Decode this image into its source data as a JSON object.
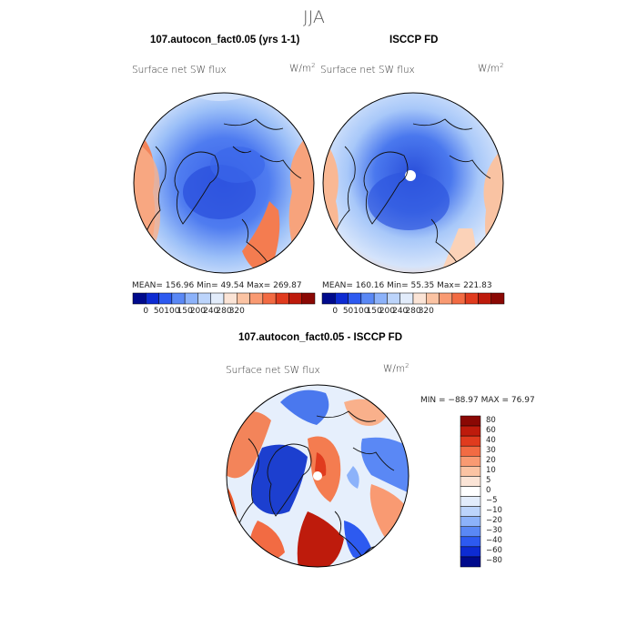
{
  "title": "JJA",
  "panels": [
    {
      "case_title": "107.autocon_fact0.05 (yrs 1-1)",
      "variable": "Surface net SW flux",
      "units_base": "W/m",
      "units_exp": "2",
      "stats": "MEAN= 156.96   Min=  49.54   Max= 269.87"
    },
    {
      "case_title": "ISCCP FD",
      "variable": "Surface net SW flux",
      "units_base": "W/m",
      "units_exp": "2",
      "stats": "MEAN= 160.16   Min=  55.35   Max= 221.83"
    }
  ],
  "diff_panel": {
    "title": "107.autocon_fact0.05 - ISCCP FD",
    "variable": "Surface net SW flux",
    "units_base": "W/m",
    "units_exp": "2",
    "stats": "MIN = −88.97 MAX =  76.97"
  },
  "colorbar_abs": {
    "ticks": [
      "0",
      "50",
      "100",
      "150",
      "200",
      "240",
      "280",
      "320"
    ],
    "colors": [
      "#000a8c",
      "#0d2bd2",
      "#2d5af0",
      "#5a88f5",
      "#8cb2fa",
      "#bcd4fb",
      "#e2ecfb",
      "#fbe4d6",
      "#fbc3a3",
      "#f99a72",
      "#f26b43",
      "#e03b1e",
      "#be1b0c",
      "#8a0804"
    ]
  },
  "colorbar_diff": {
    "ticks": [
      "80",
      "60",
      "40",
      "30",
      "20",
      "10",
      "5",
      "0",
      "−5",
      "−10",
      "−20",
      "−30",
      "−40",
      "−60",
      "−80"
    ],
    "colors": [
      "#8a0804",
      "#be1b0c",
      "#e03b1e",
      "#f26b43",
      "#f99a72",
      "#fbc3a3",
      "#fbe4d6",
      "#ffffff",
      "#e2ecfb",
      "#bcd4fb",
      "#8cb2fa",
      "#5a88f5",
      "#2d5af0",
      "#0d2bd2",
      "#000a8c"
    ]
  }
}
